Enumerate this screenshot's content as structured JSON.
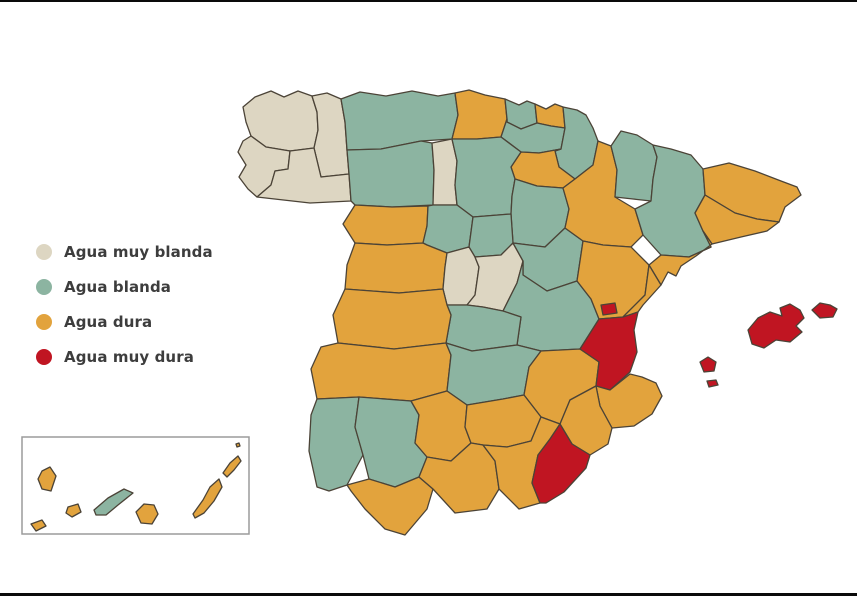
{
  "page": {
    "background": "#ffffff",
    "top_rule_color": "#0a0a0a",
    "bottom_rule_color": "#0a0a0a"
  },
  "legend": {
    "items": [
      {
        "key": "muy_blanda",
        "label": "Agua muy blanda",
        "color": "#ddd6c2"
      },
      {
        "key": "blanda",
        "label": "Agua blanda",
        "color": "#8cb4a1"
      },
      {
        "key": "dura",
        "label": "Agua dura",
        "color": "#e2a33d"
      },
      {
        "key": "muy_dura",
        "label": "Agua muy dura",
        "color": "#c01522"
      }
    ],
    "text_color": "#3d3d3d"
  },
  "map": {
    "stroke_color": "#4b4337",
    "stroke_width": 1.3,
    "inset_border_color": "#9b9b9b",
    "regions": {
      "a-coruna": "muy_blanda",
      "lugo": "muy_blanda",
      "pontevedra": "muy_blanda",
      "ourense": "muy_blanda",
      "asturias": "blanda",
      "cantabria": "dura",
      "vizcaya": "blanda",
      "gipuzkoa": "dura",
      "alava": "blanda",
      "navarra": "blanda",
      "la-rioja": "dura",
      "leon": "blanda",
      "palencia": "muy_blanda",
      "burgos": "blanda",
      "soria": "blanda",
      "zamora": "dura",
      "valladolid": "blanda",
      "segovia": "blanda",
      "salamanca": "dura",
      "avila": "muy_blanda",
      "madrid": "muy_blanda",
      "guadalajara": "blanda",
      "zaragoza": "dura",
      "huesca": "blanda",
      "lleida": "blanda",
      "girona": "dura",
      "barcelona": "dura",
      "tarragona": "dura",
      "teruel": "dura",
      "castellon": "dura",
      "cuenca": "blanda",
      "toledo": "blanda",
      "caceres": "dura",
      "badajoz": "dura",
      "ciudad-real": "blanda",
      "albacete": "dura",
      "valencia": "muy_dura",
      "rincon-de-ademuz": "muy_dura",
      "alicante": "dura",
      "murcia": "dura",
      "almeria": "muy_dura",
      "granada": "dura",
      "jaen": "dura",
      "cordoba": "dura",
      "sevilla": "blanda",
      "huelva": "blanda",
      "cadiz": "dura",
      "malaga": "dura",
      "mallorca": "muy_dura",
      "menorca": "muy_dura",
      "ibiza": "muy_dura",
      "formentera": "muy_dura",
      "la-palma": "dura",
      "el-hierro": "dura",
      "la-gomera": "dura",
      "tenerife": "blanda",
      "gran-canaria": "dura",
      "fuerteventura": "dura",
      "lanzarote": "dura",
      "la-graciosa": "dura"
    }
  }
}
